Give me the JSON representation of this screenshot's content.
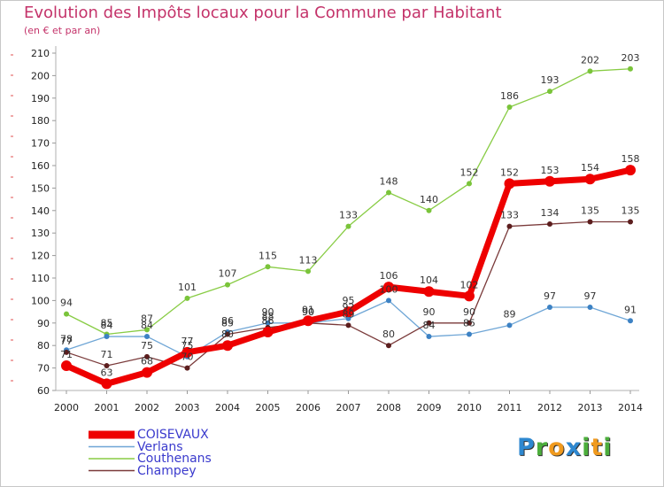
{
  "title": "Evolution des Impôts locaux pour la Commune par Habitant",
  "subtitle": "(en € et par an)",
  "brand": "Proxiti",
  "brand_letters": [
    {
      "ch": "P",
      "color": "#2e88d0"
    },
    {
      "ch": "r",
      "color": "#4cae3c"
    },
    {
      "ch": "o",
      "color": "#f09a1e"
    },
    {
      "ch": "x",
      "color": "#2e88d0"
    },
    {
      "ch": "i",
      "color": "#4cae3c"
    },
    {
      "ch": "t",
      "color": "#f09a1e"
    },
    {
      "ch": "i",
      "color": "#4cae3c"
    }
  ],
  "chart_data": {
    "type": "line",
    "title": "Evolution des Impôts locaux pour la Commune par Habitant",
    "subtitle": "(en € et par an)",
    "xlabel": "",
    "ylabel": "",
    "ylim": [
      60,
      210
    ],
    "ytick_step": 10,
    "grid": false,
    "legend_position": "bottom-left",
    "x": [
      "2000",
      "2001",
      "2002",
      "2003",
      "2004",
      "2005",
      "2006",
      "2007",
      "2008",
      "2009",
      "2010",
      "2011",
      "2012",
      "2013",
      "2014"
    ],
    "series": [
      {
        "name": "Couthenans",
        "color": "#88cc44",
        "marker": "#7ac43a",
        "width": 1.3,
        "label_order": 3,
        "values": [
          94,
          85,
          87,
          101,
          107,
          115,
          113,
          133,
          148,
          140,
          152,
          186,
          193,
          202,
          203
        ],
        "labels": [
          "94",
          "85",
          "87",
          "101",
          "107",
          "115",
          "113",
          "133",
          "148",
          "140",
          "152",
          "186",
          "193",
          "202",
          "203"
        ]
      },
      {
        "name": "Verlans",
        "color": "#6fa6d6",
        "marker": "#3d82c4",
        "width": 1.3,
        "label_order": 2,
        "values": [
          78,
          84,
          84,
          75,
          86,
          90,
          90,
          92,
          100,
          84,
          85,
          89,
          97,
          97,
          91
        ],
        "labels": [
          "78",
          "84",
          "84",
          "75",
          "86",
          "90",
          "90",
          "92",
          "100",
          "84",
          "85",
          "89",
          "97",
          "97",
          "91"
        ]
      },
      {
        "name": "Champey",
        "color": "#7a3a3a",
        "marker": "#5c1e1e",
        "width": 1.3,
        "label_order": 4,
        "values": [
          77,
          71,
          75,
          70,
          85,
          88,
          90,
          89,
          80,
          90,
          90,
          133,
          134,
          135,
          135
        ],
        "labels": [
          "77",
          "71",
          "75",
          "70",
          "85",
          "88",
          "90",
          "89",
          "80",
          "90",
          "90",
          "133",
          "134",
          "135",
          "135"
        ]
      },
      {
        "name": "COISEVAUX",
        "color": "#ee0000",
        "marker": "#ee0000",
        "width": 7,
        "label_order": 1,
        "values": [
          71,
          63,
          68,
          77,
          80,
          86,
          91,
          95,
          106,
          104,
          102,
          152,
          153,
          154,
          158
        ],
        "labels": [
          "71",
          "63",
          "68",
          "77",
          "80",
          "86",
          "91",
          "95",
          "106",
          "104",
          "102",
          "152",
          "153",
          "154",
          "158"
        ]
      }
    ],
    "legend": [
      "COISEVAUX",
      "Verlans",
      "Couthenans",
      "Champey"
    ]
  }
}
